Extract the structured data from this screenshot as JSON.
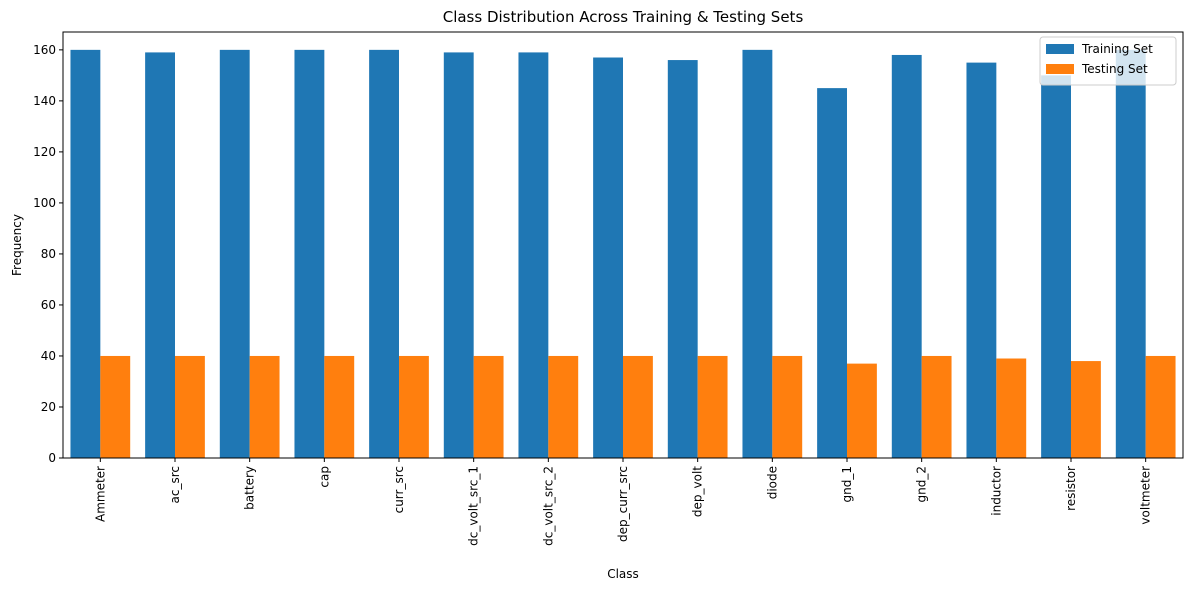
{
  "chart_data": {
    "type": "bar",
    "title": "Class Distribution Across Training & Testing Sets",
    "xlabel": "Class",
    "ylabel": "Frequency",
    "ylim": [
      0,
      167
    ],
    "yticks": [
      0,
      20,
      40,
      60,
      80,
      100,
      120,
      140,
      160
    ],
    "grid": false,
    "legend_position": "top-right",
    "categories": [
      "Ammeter",
      "ac_src",
      "battery",
      "cap",
      "curr_src",
      "dc_volt_src_1",
      "dc_volt_src_2",
      "dep_curr_src",
      "dep_volt",
      "diode",
      "gnd_1",
      "gnd_2",
      "inductor",
      "resistor",
      "voltmeter"
    ],
    "series": [
      {
        "name": "Training Set",
        "color": "#1f77b4",
        "values": [
          160,
          159,
          160,
          160,
          160,
          159,
          159,
          157,
          156,
          160,
          145,
          158,
          155,
          150,
          160
        ]
      },
      {
        "name": "Testing Set",
        "color": "#ff7f0e",
        "values": [
          40,
          40,
          40,
          40,
          40,
          40,
          40,
          40,
          40,
          40,
          37,
          40,
          39,
          38,
          40
        ]
      }
    ]
  }
}
